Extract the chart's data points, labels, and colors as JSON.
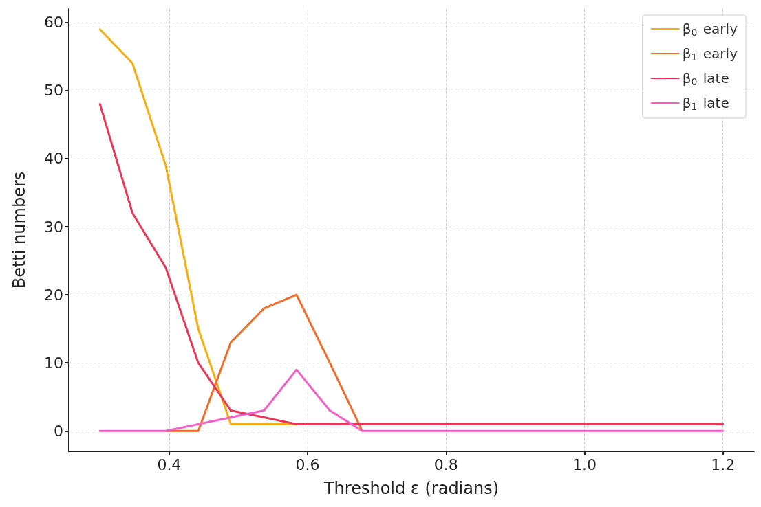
{
  "chart_data": {
    "type": "line",
    "xlabel": "Threshold ε (radians)",
    "ylabel": "Betti numbers",
    "x": [
      0.3,
      0.347,
      0.395,
      0.442,
      0.489,
      0.537,
      0.584,
      0.632,
      0.679,
      0.726,
      0.774,
      0.821,
      0.868,
      0.916,
      0.963,
      1.011,
      1.058,
      1.105,
      1.153,
      1.2
    ],
    "series": [
      {
        "name": "β$_{0}$ early",
        "color": "#f8ad0c",
        "values": [
          59,
          54,
          39,
          15,
          1,
          1,
          1,
          null,
          null,
          null,
          null,
          null,
          null,
          null,
          null,
          null,
          null,
          null,
          null,
          null
        ]
      },
      {
        "name": "β$_{1}$ early",
        "color": "#f26b27",
        "values": [
          null,
          null,
          0,
          0,
          13,
          18,
          20,
          10,
          0,
          null,
          null,
          null,
          null,
          null,
          null,
          null,
          null,
          null,
          null,
          null
        ]
      },
      {
        "name": "β$_{0}$ late",
        "color": "#ec3558",
        "values": [
          48,
          32,
          24,
          10,
          3,
          2,
          1,
          1,
          1,
          1,
          1,
          1,
          1,
          1,
          1,
          1,
          1,
          1,
          1,
          1
        ]
      },
      {
        "name": "β$_{1}$ late",
        "color": "#f65cc6",
        "values": [
          0,
          0,
          0,
          1,
          2,
          3,
          9,
          3,
          0,
          0,
          0,
          0,
          0,
          0,
          0,
          0,
          0,
          0,
          0,
          0
        ]
      }
    ],
    "xlim": [
      0.255,
      1.245
    ],
    "xticks": [
      0.4,
      0.6,
      0.8,
      {
        "value": 1,
        "label": "1.0"
      },
      1.2
    ],
    "ylim": [
      -3,
      62
    ],
    "yticks": [
      0,
      10,
      20,
      30,
      40,
      50,
      60
    ],
    "grid": true,
    "legend": "top right",
    "marker": "none",
    "line_style": "solid"
  }
}
